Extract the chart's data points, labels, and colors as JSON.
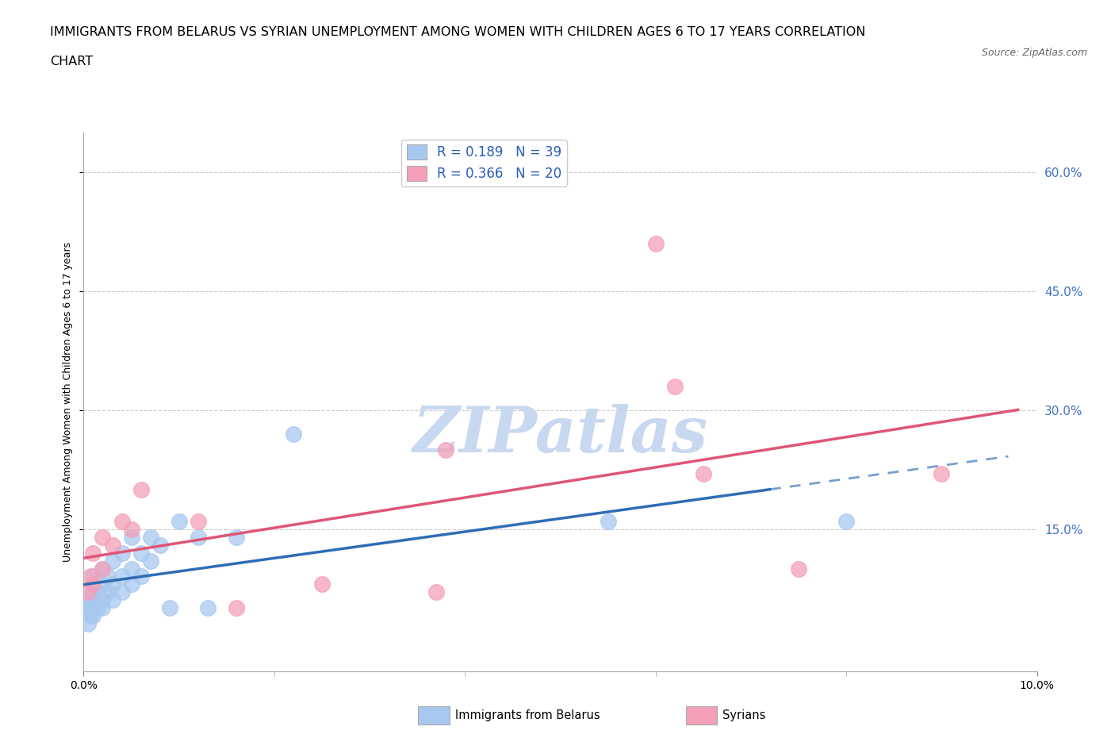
{
  "title_line1": "IMMIGRANTS FROM BELARUS VS SYRIAN UNEMPLOYMENT AMONG WOMEN WITH CHILDREN AGES 6 TO 17 YEARS CORRELATION",
  "title_line2": "CHART",
  "source": "Source: ZipAtlas.com",
  "ylabel": "Unemployment Among Women with Children Ages 6 to 17 years",
  "xlim": [
    0.0,
    0.1
  ],
  "ylim": [
    -0.03,
    0.65
  ],
  "ytick_positions": [
    0.15,
    0.3,
    0.45,
    0.6
  ],
  "ytick_labels": [
    "15.0%",
    "30.0%",
    "45.0%",
    "60.0%"
  ],
  "legend_R_belarus": "0.189",
  "legend_N_belarus": "39",
  "legend_R_syrians": "0.366",
  "legend_N_syrians": "20",
  "color_belarus": "#A8C8F0",
  "color_syrians": "#F4A0B8",
  "color_belarus_line": "#2E6DB4",
  "color_syrians_line": "#E05575",
  "background_color": "#FFFFFF",
  "grid_color": "#CCCCCC",
  "belarus_x": [
    0.0005,
    0.0005,
    0.0007,
    0.0007,
    0.0008,
    0.001,
    0.001,
    0.001,
    0.001,
    0.0015,
    0.0015,
    0.002,
    0.002,
    0.002,
    0.002,
    0.0025,
    0.0025,
    0.003,
    0.003,
    0.003,
    0.004,
    0.004,
    0.004,
    0.005,
    0.005,
    0.005,
    0.006,
    0.006,
    0.007,
    0.007,
    0.008,
    0.009,
    0.01,
    0.012,
    0.013,
    0.016,
    0.022,
    0.055,
    0.08
  ],
  "belarus_y": [
    0.03,
    0.05,
    0.04,
    0.06,
    0.05,
    0.04,
    0.06,
    0.07,
    0.09,
    0.05,
    0.07,
    0.05,
    0.06,
    0.08,
    0.1,
    0.07,
    0.09,
    0.06,
    0.08,
    0.11,
    0.07,
    0.09,
    0.12,
    0.08,
    0.1,
    0.14,
    0.09,
    0.12,
    0.11,
    0.14,
    0.13,
    0.05,
    0.16,
    0.14,
    0.05,
    0.14,
    0.27,
    0.16,
    0.16
  ],
  "syrians_x": [
    0.0005,
    0.0007,
    0.001,
    0.001,
    0.002,
    0.002,
    0.003,
    0.004,
    0.005,
    0.006,
    0.012,
    0.016,
    0.025,
    0.037,
    0.038,
    0.06,
    0.062,
    0.065,
    0.075,
    0.09
  ],
  "syrians_y": [
    0.07,
    0.09,
    0.08,
    0.12,
    0.1,
    0.14,
    0.13,
    0.16,
    0.15,
    0.2,
    0.16,
    0.05,
    0.08,
    0.07,
    0.25,
    0.51,
    0.33,
    0.22,
    0.1,
    0.22
  ],
  "title_fontsize": 11.5,
  "axis_fontsize": 9,
  "tick_fontsize": 10,
  "legend_fontsize": 12,
  "right_tick_color": "#4472C4"
}
